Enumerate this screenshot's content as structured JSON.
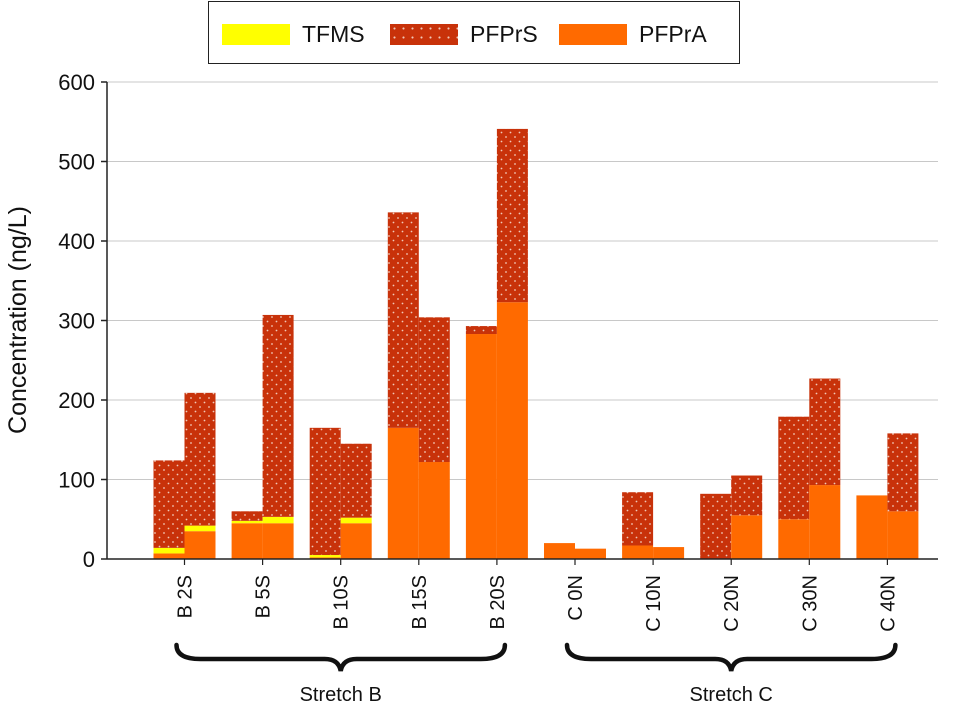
{
  "chart_data": {
    "type": "bar",
    "stacked": true,
    "ylabel": "Concentration (ng/L)",
    "ylim": [
      0,
      600
    ],
    "yticks": [
      0,
      100,
      200,
      300,
      400,
      500,
      600
    ],
    "grid": "horizontal",
    "legend_position": "top",
    "categories": [
      "B 2S",
      "B 5S",
      "B 10S",
      "B 15S",
      "B 20S",
      "C 0N",
      "C 10N",
      "C 20N",
      "C 30N",
      "C 40N"
    ],
    "bars_per_category": 2,
    "groups": [
      {
        "label": "Stretch B",
        "categories": [
          "B 2S",
          "B 5S",
          "B 10S",
          "B 15S",
          "B 20S"
        ]
      },
      {
        "label": "Stretch C",
        "categories": [
          "C 0N",
          "C 10N",
          "C 20N",
          "C 30N",
          "C 40N"
        ]
      }
    ],
    "series": [
      {
        "name": "PFPrA",
        "color": "#ff6a00",
        "pattern": "solid",
        "values": [
          [
            7,
            35
          ],
          [
            45,
            45
          ],
          [
            2,
            45
          ],
          [
            165,
            122
          ],
          [
            283,
            323
          ],
          [
            20,
            13
          ],
          [
            17,
            15
          ],
          [
            0,
            55
          ],
          [
            50,
            93
          ],
          [
            80,
            60
          ]
        ]
      },
      {
        "name": "TFMS",
        "color": "#ffff00",
        "pattern": "solid",
        "values": [
          [
            7,
            7
          ],
          [
            3,
            8
          ],
          [
            3,
            7
          ],
          [
            0,
            0
          ],
          [
            0,
            0
          ],
          [
            0,
            0
          ],
          [
            0,
            0
          ],
          [
            0,
            0
          ],
          [
            0,
            0
          ],
          [
            0,
            0
          ]
        ]
      },
      {
        "name": "PFPrS",
        "color": "#c8320a",
        "pattern": "dotted",
        "values": [
          [
            110,
            167
          ],
          [
            12,
            254
          ],
          [
            160,
            93
          ],
          [
            271,
            182
          ],
          [
            10,
            218
          ],
          [
            0,
            0
          ],
          [
            67,
            0
          ],
          [
            82,
            50
          ],
          [
            129,
            134
          ],
          [
            0,
            98
          ]
        ]
      }
    ],
    "legend_order": [
      "TFMS",
      "PFPrS",
      "PFPrA"
    ]
  },
  "colors": {
    "tfms": "#ffff00",
    "pfprs": "#c8320a",
    "pfpra": "#ff6a00",
    "pfprs_dots": "#f0c8b8",
    "grid": "#c8c8c8",
    "axis": "#222222"
  }
}
